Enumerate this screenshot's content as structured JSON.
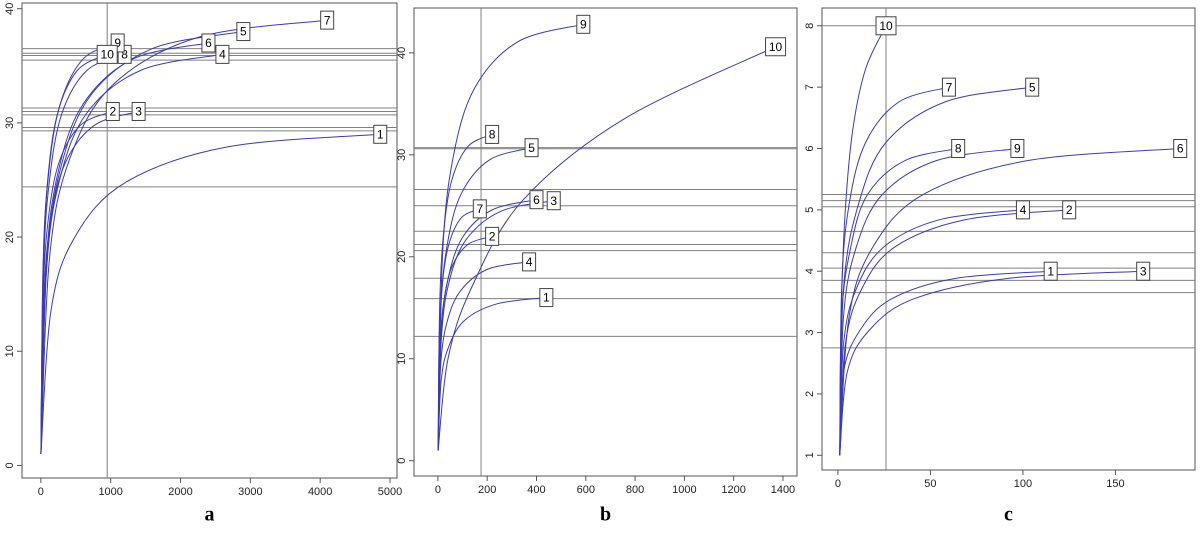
{
  "chart_data": [
    {
      "type": "line",
      "caption": "a",
      "color": "#3b3bb0",
      "ref_color": "#808080",
      "xlim": [
        -270,
        5100
      ],
      "ylim": [
        -1.1,
        40.5
      ],
      "xticks": [
        0,
        1000,
        2000,
        3000,
        4000,
        5000
      ],
      "yticks": [
        0,
        10,
        20,
        30,
        40
      ],
      "hlines": [
        24.4,
        29.3,
        29.6,
        30.7,
        31.0,
        31.3,
        35.5,
        35.9,
        36.1,
        36.5
      ],
      "vline": 950,
      "series": [
        {
          "name": "1",
          "x": [
            1,
            146,
            486,
            1215,
            2673,
            4860
          ],
          "values": [
            1,
            13.6,
            20.0,
            24.8,
            27.9,
            29
          ]
        },
        {
          "name": "2",
          "x": [
            1,
            31,
            103,
            258,
            567,
            1030
          ],
          "values": [
            1,
            14.5,
            21.4,
            26.5,
            29.8,
            31
          ]
        },
        {
          "name": "3",
          "x": [
            1,
            42,
            140,
            350,
            770,
            1400
          ],
          "values": [
            1,
            14.5,
            21.4,
            26.5,
            29.8,
            31
          ]
        },
        {
          "name": "4",
          "x": [
            1,
            78,
            260,
            650,
            1430,
            2600
          ],
          "values": [
            1,
            16.8,
            24.8,
            30.8,
            34.6,
            36
          ]
        },
        {
          "name": "5",
          "x": [
            1,
            87,
            290,
            725,
            1595,
            2900
          ],
          "values": [
            1,
            17.7,
            26.2,
            32.5,
            36.5,
            38
          ]
        },
        {
          "name": "6",
          "x": [
            1,
            72,
            240,
            600,
            1320,
            2400
          ],
          "values": [
            1,
            17.2,
            25.5,
            31.6,
            35.6,
            37
          ]
        },
        {
          "name": "7",
          "x": [
            1,
            123,
            410,
            1025,
            2255,
            4100
          ],
          "values": [
            1,
            18.1,
            26.8,
            33.3,
            37.5,
            39
          ]
        },
        {
          "name": "8",
          "x": [
            1,
            36,
            120,
            300,
            660,
            1200
          ],
          "values": [
            1,
            16.8,
            24.8,
            30.8,
            34.6,
            36
          ]
        },
        {
          "name": "9",
          "x": [
            1,
            33,
            110,
            275,
            605,
            1100
          ],
          "values": [
            1,
            17.2,
            25.5,
            31.6,
            35.6,
            37
          ]
        },
        {
          "name": "10",
          "x": [
            1,
            29,
            95,
            238,
            523,
            950
          ],
          "values": [
            1,
            16.8,
            24.8,
            30.8,
            34.6,
            36
          ]
        }
      ]
    },
    {
      "type": "line",
      "caption": "b",
      "color": "#3b3bb0",
      "ref_color": "#808080",
      "xlim": [
        -97,
        1457
      ],
      "ylim": [
        -1.5,
        44.4
      ],
      "xticks": [
        0,
        200,
        400,
        600,
        800,
        1000,
        1200,
        1400
      ],
      "yticks": [
        0,
        10,
        20,
        30,
        40
      ],
      "hlines": [
        12.2,
        15.9,
        17.9,
        20.6,
        21.2,
        22.5,
        25.0,
        26.6,
        30.6,
        30.7
      ],
      "vline": 175,
      "series": [
        {
          "name": "1",
          "x": [
            1,
            13,
            44,
            110,
            242,
            440
          ],
          "values": [
            1,
            7.8,
            11.2,
            13.8,
            15.4,
            16
          ]
        },
        {
          "name": "2",
          "x": [
            1,
            7,
            22,
            55,
            121,
            220
          ],
          "values": [
            1,
            10.5,
            15.3,
            18.9,
            21.2,
            22
          ]
        },
        {
          "name": "3",
          "x": [
            1,
            14,
            47,
            118,
            259,
            470
          ],
          "values": [
            1,
            12.0,
            17.7,
            21.8,
            24.5,
            25.5
          ]
        },
        {
          "name": "4",
          "x": [
            1,
            11,
            37,
            93,
            204,
            370
          ],
          "values": [
            1,
            9.3,
            13.6,
            16.7,
            18.8,
            19.5
          ]
        },
        {
          "name": "5",
          "x": [
            1,
            11,
            38,
            95,
            209,
            380
          ],
          "values": [
            1,
            14.4,
            21.2,
            26.2,
            29.5,
            30.7
          ]
        },
        {
          "name": "6",
          "x": [
            1,
            12,
            40,
            100,
            220,
            400
          ],
          "values": [
            1,
            12.1,
            17.7,
            21.9,
            24.6,
            25.6
          ]
        },
        {
          "name": "7",
          "x": [
            1,
            5,
            17,
            43,
            94,
            170
          ],
          "values": [
            1,
            11.7,
            17.1,
            21.1,
            23.8,
            24.7
          ]
        },
        {
          "name": "8",
          "x": [
            1,
            7,
            22,
            55,
            121,
            220
          ],
          "values": [
            1,
            15,
            22.1,
            27.4,
            30.8,
            32
          ]
        },
        {
          "name": "9",
          "x": [
            1,
            18,
            59,
            148,
            325,
            590
          ],
          "values": [
            1,
            19.8,
            29.4,
            36.5,
            41.1,
            42.8
          ]
        },
        {
          "name": "10",
          "x": [
            1,
            41,
            137,
            343,
            754,
            1370
          ],
          "values": [
            1,
            10,
            17,
            25.5,
            33.5,
            40.6
          ]
        }
      ]
    },
    {
      "type": "line",
      "caption": "c",
      "color": "#3b3bb0",
      "ref_color": "#808080",
      "xlim": [
        -8.6,
        193
      ],
      "ylim": [
        0.76,
        8.29
      ],
      "xticks": [
        0,
        50,
        100,
        150
      ],
      "yticks": [
        1,
        2,
        3,
        4,
        5,
        6,
        7,
        8
      ],
      "hlines": [
        2.75,
        3.65,
        3.85,
        4.05,
        4.3,
        4.65,
        5.05,
        5.15,
        5.25,
        8.0
      ],
      "vline": 26,
      "series": [
        {
          "name": "1",
          "x": [
            1,
            3,
            12,
            29,
            63,
            115
          ],
          "values": [
            1,
            2.35,
            3.04,
            3.55,
            3.88,
            4
          ]
        },
        {
          "name": "2",
          "x": [
            1,
            4,
            13,
            31,
            69,
            125
          ],
          "values": [
            1,
            2.8,
            3.72,
            4.4,
            4.84,
            5
          ]
        },
        {
          "name": "3",
          "x": [
            1,
            5,
            17,
            41,
            91,
            165
          ],
          "values": [
            1,
            2.35,
            3.04,
            3.55,
            3.88,
            4
          ]
        },
        {
          "name": "4",
          "x": [
            1,
            3,
            10,
            25,
            55,
            100
          ],
          "values": [
            1,
            2.8,
            3.72,
            4.4,
            4.84,
            5
          ]
        },
        {
          "name": "5",
          "x": [
            1,
            3,
            11,
            26,
            58,
            105
          ],
          "values": [
            1,
            3.7,
            5.08,
            6.1,
            6.76,
            7
          ]
        },
        {
          "name": "6",
          "x": [
            1,
            6,
            19,
            46,
            102,
            185
          ],
          "values": [
            1,
            3.25,
            4.4,
            5.25,
            5.8,
            6
          ]
        },
        {
          "name": "7",
          "x": [
            1,
            2,
            6,
            15,
            33,
            60
          ],
          "values": [
            1,
            3.7,
            5.08,
            6.1,
            6.76,
            7
          ]
        },
        {
          "name": "8",
          "x": [
            1,
            2,
            7,
            16,
            36,
            65
          ],
          "values": [
            1,
            3.25,
            4.4,
            5.25,
            5.8,
            6
          ]
        },
        {
          "name": "9",
          "x": [
            1,
            3,
            10,
            24,
            53,
            97
          ],
          "values": [
            1,
            3.25,
            4.4,
            5.25,
            5.8,
            6
          ]
        },
        {
          "name": "10",
          "x": [
            1,
            2,
            4,
            8,
            15,
            26
          ],
          "values": [
            1,
            3.5,
            5,
            6.3,
            7.3,
            8
          ]
        }
      ]
    }
  ]
}
